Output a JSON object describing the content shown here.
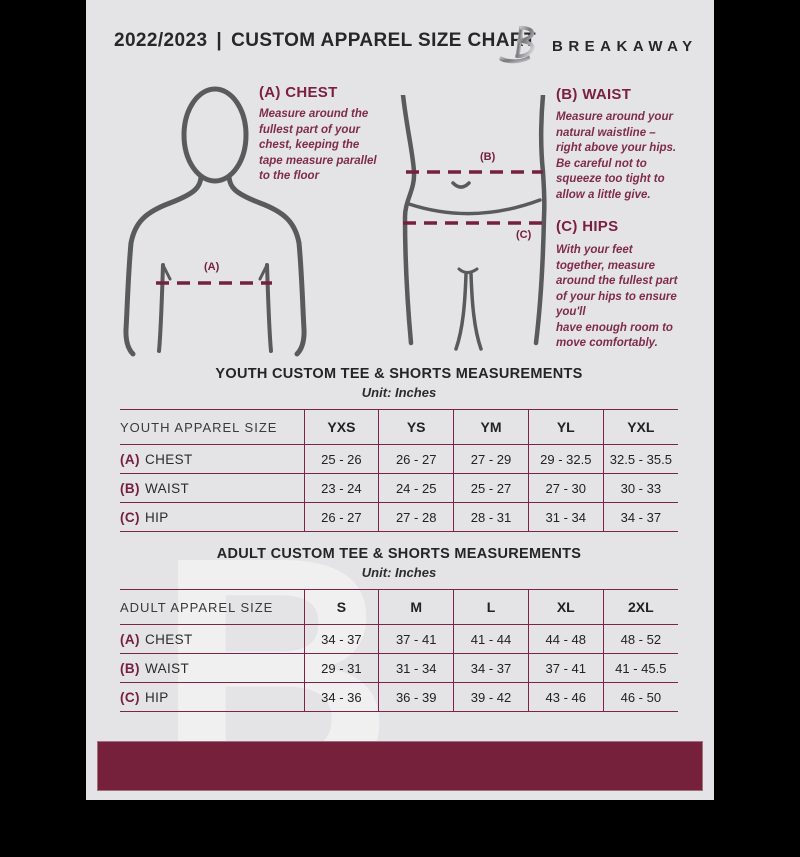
{
  "header": {
    "edition": "2022/2023",
    "separator": "|",
    "title": "CUSTOM APPAREL SIZE CHART",
    "brand": "BREAKAWAY",
    "logo_icon": "breakaway-b-monogram"
  },
  "colors": {
    "maroon": "#75213C",
    "page_background": "#E4E4E6",
    "text_dark": "#272727",
    "figure_gray": "#595A5C",
    "table_line": "#7D2444"
  },
  "guide": {
    "chest": {
      "heading": "(A) CHEST",
      "body": "Measure around the\nfullest part of your\nchest, keeping the\ntape measure parallel\nto the floor",
      "marker": "(A)"
    },
    "waist": {
      "heading": "(B) WAIST",
      "body": "Measure around your\nnatural waistline –\nright above your hips.\nBe careful not to\nsqueeze too tight to\nallow a little give.",
      "marker": "(B)"
    },
    "hips": {
      "heading": "(C) HIPS",
      "body": "With your feet\ntogether, measure\naround the fullest part\nof your hips to ensure\nyou'll\nhave enough room to\nmove comfortably.",
      "marker": "(C)"
    }
  },
  "tables": [
    {
      "title": "YOUTH CUSTOM TEE & SHORTS MEASUREMENTS",
      "unit": "Unit: Inches",
      "header": [
        "YOUTH APPAREL SIZE",
        "YXS",
        "YS",
        "YM",
        "YL",
        "YXL"
      ],
      "rows": [
        {
          "key": "(A)",
          "label": "CHEST",
          "values": [
            "25 - 26",
            "26 - 27",
            "27 - 29",
            "29 - 32.5",
            "32.5 - 35.5"
          ]
        },
        {
          "key": "(B)",
          "label": "WAIST",
          "values": [
            "23 - 24",
            "24 - 25",
            "25 - 27",
            "27 - 30",
            "30 - 33"
          ]
        },
        {
          "key": "(C)",
          "label": "HIP",
          "values": [
            "26 - 27",
            "27 - 28",
            "28 - 31",
            "31 - 34",
            "34 - 37"
          ]
        }
      ]
    },
    {
      "title": "ADULT CUSTOM TEE & SHORTS MEASUREMENTS",
      "unit": "Unit: Inches",
      "header": [
        "ADULT APPAREL SIZE",
        "S",
        "M",
        "L",
        "XL",
        "2XL"
      ],
      "rows": [
        {
          "key": "(A)",
          "label": "CHEST",
          "values": [
            "34 - 37",
            "37 - 41",
            "41 - 44",
            "44 - 48",
            "48 - 52"
          ]
        },
        {
          "key": "(B)",
          "label": "WAIST",
          "values": [
            "29 - 31",
            "31 - 34",
            "34 - 37",
            "37 - 41",
            "41 - 45.5"
          ]
        },
        {
          "key": "(C)",
          "label": "HIP",
          "values": [
            "34 - 36",
            "36 - 39",
            "39 - 42",
            "43 - 46",
            "46 - 50"
          ]
        }
      ]
    }
  ],
  "watermark": "B"
}
